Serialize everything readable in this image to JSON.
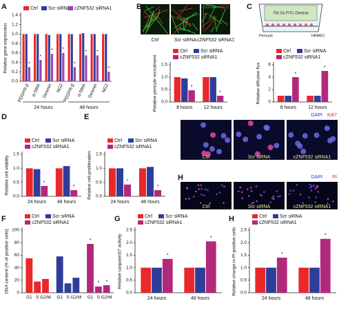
{
  "chart_data": [
    {
      "type": "bar",
      "panel": "A",
      "ylabel": "Relative gene expression",
      "categories": [
        "PDGFR-β",
        "α-SMA",
        "Desmin",
        "NG2",
        "PDGFR-β",
        "α-SMA",
        "Desmin",
        "NG2"
      ],
      "group_labels": [
        "24 hours",
        "48 hours"
      ],
      "series": [
        {
          "name": "Ctrl",
          "color": "#e8282a",
          "values": [
            1.0,
            1.0,
            1.0,
            1.0,
            1.0,
            1.0,
            1.0,
            1.0
          ]
        },
        {
          "name": "Scr siRNA",
          "color": "#2f3d9a",
          "values": [
            1.0,
            1.0,
            0.98,
            1.0,
            1.0,
            1.02,
            1.0,
            1.0
          ]
        },
        {
          "name": "cZNF532 siRNA1",
          "color": "#9b3fb5",
          "values": [
            0.3,
            0.45,
            0.58,
            0.6,
            0.3,
            0.55,
            0.55,
            0.2
          ]
        }
      ],
      "ylim": [
        0,
        1.4
      ],
      "yticks": [
        {
          "value": 0,
          "label": "0.0"
        },
        0.2,
        0.4,
        0.6,
        0.8,
        {
          "value": 1,
          "label": "1.0"
        },
        1.2,
        1.4
      ],
      "annotation": "*"
    },
    {
      "type": "bar",
      "panel": "B",
      "ylabel": "Relative pericyte recruitment",
      "categories": [
        "8 hours",
        "12 hours"
      ],
      "series": [
        {
          "name": "Ctrl",
          "color": "#e8282a",
          "values": [
            1.0,
            1.0
          ]
        },
        {
          "name": "Scr siRNA",
          "color": "#2f3d9a",
          "values": [
            0.95,
            1.0
          ]
        },
        {
          "name": "cZNF532 siRNA1",
          "color": "#b2287a",
          "values": [
            0.47,
            0.25
          ]
        }
      ],
      "ylim": [
        0,
        1.5
      ],
      "yticks": [
        {
          "value": 0,
          "label": "0.0"
        },
        0.5,
        {
          "value": 1,
          "label": "1.0"
        },
        1.5
      ],
      "annotation": "*"
    },
    {
      "type": "bar",
      "panel": "C",
      "ylabel": "Relative diffusive flux",
      "categories": [
        "8 hours",
        "12 hours"
      ],
      "series": [
        {
          "name": "Ctrl",
          "color": "#e8282a",
          "values": [
            1.0,
            1.0
          ]
        },
        {
          "name": "Scr siRNA",
          "color": "#2f3d9a",
          "values": [
            1.0,
            1.0
          ]
        },
        {
          "name": "cZNF532 siRNA1",
          "color": "#b2287a",
          "values": [
            4.0,
            5.0
          ]
        }
      ],
      "ylim": [
        0,
        6
      ],
      "yticks": [
        0,
        2,
        4,
        6
      ],
      "annotation": "*"
    },
    {
      "type": "bar",
      "panel": "D",
      "ylabel": "Relative cell viability",
      "categories": [
        "24 hours",
        "48 hours"
      ],
      "series": [
        {
          "name": "Ctrl",
          "color": "#e8282a",
          "values": [
            1.0,
            1.0
          ]
        },
        {
          "name": "Scr siRNA",
          "color": "#2f3d9a",
          "values": [
            0.97,
            1.08
          ]
        },
        {
          "name": "cZNF532 siRNA1",
          "color": "#b2287a",
          "values": [
            0.37,
            0.22
          ]
        }
      ],
      "ylim": [
        0,
        1.5
      ],
      "yticks": [
        {
          "value": 0,
          "label": "0.0"
        },
        0.5,
        {
          "value": 1,
          "label": "1.0"
        },
        1.5
      ],
      "annotation": "*"
    },
    {
      "type": "bar",
      "panel": "E",
      "ylabel": "Relative cell proliferation",
      "categories": [
        "24 hours",
        "48 hours"
      ],
      "series": [
        {
          "name": "Ctrl",
          "color": "#e8282a",
          "values": [
            1.0,
            1.0
          ]
        },
        {
          "name": "Scr siRNA",
          "color": "#2f3d9a",
          "values": [
            1.0,
            1.05
          ]
        },
        {
          "name": "cZNF532 siRNA1",
          "color": "#b2287a",
          "values": [
            0.42,
            0.22
          ]
        }
      ],
      "ylim": [
        0,
        1.5
      ],
      "yticks": [
        {
          "value": 0,
          "label": "0.0"
        },
        0.5,
        {
          "value": 1,
          "label": "1.0"
        },
        1.5
      ],
      "annotation": "*"
    },
    {
      "type": "bar",
      "panel": "F",
      "ylabel": "DNA content (% of positive cells)",
      "categories": [
        "G1",
        "S",
        "G2/M"
      ],
      "series": [
        {
          "name": "Ctrl",
          "color": "#e8282a",
          "values": [
            55,
            18,
            22
          ]
        },
        {
          "name": "Scr siRNA",
          "color": "#2f3d9a",
          "values": [
            58,
            15,
            24
          ]
        },
        {
          "name": "cZNF532 siRNA1",
          "color": "#b2287a",
          "values": [
            78,
            10,
            12
          ]
        }
      ],
      "ylim": [
        0,
        100
      ],
      "yticks": [
        0,
        20,
        40,
        60,
        80,
        100
      ],
      "annotation": "*"
    },
    {
      "type": "bar",
      "panel": "G",
      "ylabel": "Relative caspase3/7 activity",
      "categories": [
        "24 hours",
        "48 hours"
      ],
      "series": [
        {
          "name": "Ctrl",
          "color": "#e8282a",
          "values": [
            1.0,
            1.0
          ]
        },
        {
          "name": "Scr siRNA",
          "color": "#2f3d9a",
          "values": [
            1.0,
            1.0
          ]
        },
        {
          "name": "cZNF532 siRNA1",
          "color": "#b2287a",
          "values": [
            1.35,
            2.05
          ]
        }
      ],
      "ylim": [
        0,
        2.5
      ],
      "yticks": [
        {
          "value": 0,
          "label": "0.0"
        },
        0.5,
        {
          "value": 1,
          "label": "1.0"
        },
        1.5,
        {
          "value": 2,
          "label": "2.0"
        },
        2.5
      ],
      "annotation": "*"
    },
    {
      "type": "bar",
      "panel": "H",
      "ylabel": "Relative change in PI positive cells",
      "categories": [
        "24 hours",
        "48 hours"
      ],
      "series": [
        {
          "name": "Ctrl",
          "color": "#e8282a",
          "values": [
            1.0,
            1.0
          ]
        },
        {
          "name": "Scr siRNA",
          "color": "#2f3d9a",
          "values": [
            1.0,
            1.0
          ]
        },
        {
          "name": "cZNF532 siRNA1",
          "color": "#b2287a",
          "values": [
            1.4,
            2.15
          ]
        }
      ],
      "ylim": [
        0,
        2.5
      ],
      "yticks": [
        {
          "value": 0,
          "label": "0.0"
        },
        0.5,
        {
          "value": 1,
          "label": "1.0"
        },
        1.5,
        {
          "value": 2,
          "label": "2.0"
        },
        2.5
      ],
      "annotation": "*"
    }
  ],
  "images": [
    {
      "channels": [
        "CD31",
        "NG2"
      ],
      "labels": [
        "Ctrl",
        "Scr siRNA",
        "cZNF532 siRNA1"
      ]
    },
    {
      "channels": [
        "DAPI",
        "Ki67"
      ],
      "labels": [
        "Ctrl",
        "Scr siRNA",
        "cZNF532 siRNA1"
      ]
    },
    {
      "panel": "H",
      "channels": [
        "DAPI",
        "PI"
      ],
      "labels": [
        "Ctrl",
        "Scr siRNA",
        "cZNF532 siRNA1"
      ]
    }
  ],
  "diagram": {
    "reagent": "70k Da FITC-Dextran",
    "cell_left": "Pericyte",
    "cell_right": "HRMEC"
  }
}
